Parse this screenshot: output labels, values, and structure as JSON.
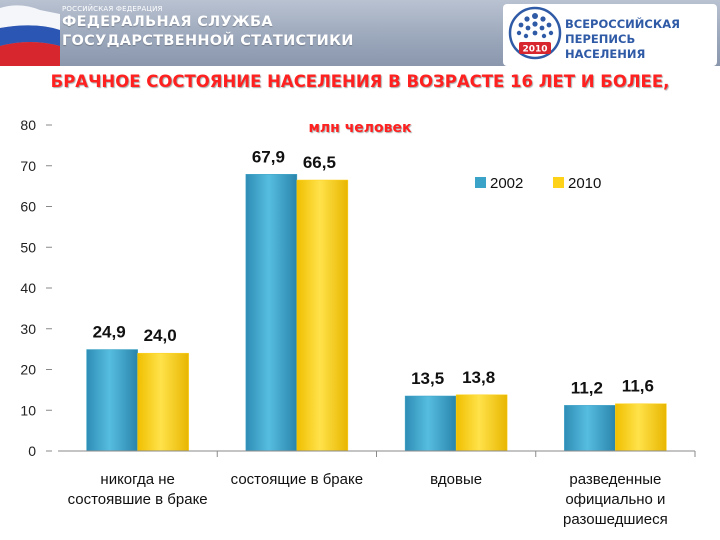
{
  "header": {
    "agency_small": "РОССИЙСКАЯ ФЕДЕРАЦИЯ",
    "agency_line1": "ФЕДЕРАЛЬНАЯ СЛУЖБА",
    "agency_line2": "ГОСУДАРСТВЕННОЙ СТАТИСТИКИ",
    "census_line1": "ВСЕРОССИЙСКАЯ",
    "census_line2": "ПЕРЕПИСЬ НАСЕЛЕНИЯ",
    "census_year": "2010"
  },
  "colors": {
    "series_2002": "#3aa3c7",
    "series_2010": "#ffd21a",
    "title": "#ff2020"
  },
  "chart_data": {
    "type": "bar",
    "title": "БРАЧНОЕ СОСТОЯНИЕ НАСЕЛЕНИЯ В ВОЗРАСТЕ 16 ЛЕТ И БОЛЕЕ,",
    "subtitle": "млн человек",
    "categories": [
      [
        "никогда не",
        "состоявшие в браке"
      ],
      [
        "состоящие в браке"
      ],
      [
        "вдовые"
      ],
      [
        "разведенные",
        "официально и",
        "разошедшиеся"
      ]
    ],
    "series": [
      {
        "name": "2002",
        "values": [
          24.9,
          67.9,
          13.5,
          11.2
        ],
        "labels": [
          "24,9",
          "67,9",
          "13,5",
          "11,2"
        ]
      },
      {
        "name": "2010",
        "values": [
          24.0,
          66.5,
          13.8,
          11.6
        ],
        "labels": [
          "24,0",
          "66,5",
          "13,8",
          "11,6"
        ]
      }
    ],
    "ylim": [
      0,
      80
    ],
    "yticks": [
      "0",
      "10",
      "20",
      "30",
      "40",
      "50",
      "60",
      "70",
      "80"
    ],
    "grid": false,
    "legend": "top-right"
  }
}
